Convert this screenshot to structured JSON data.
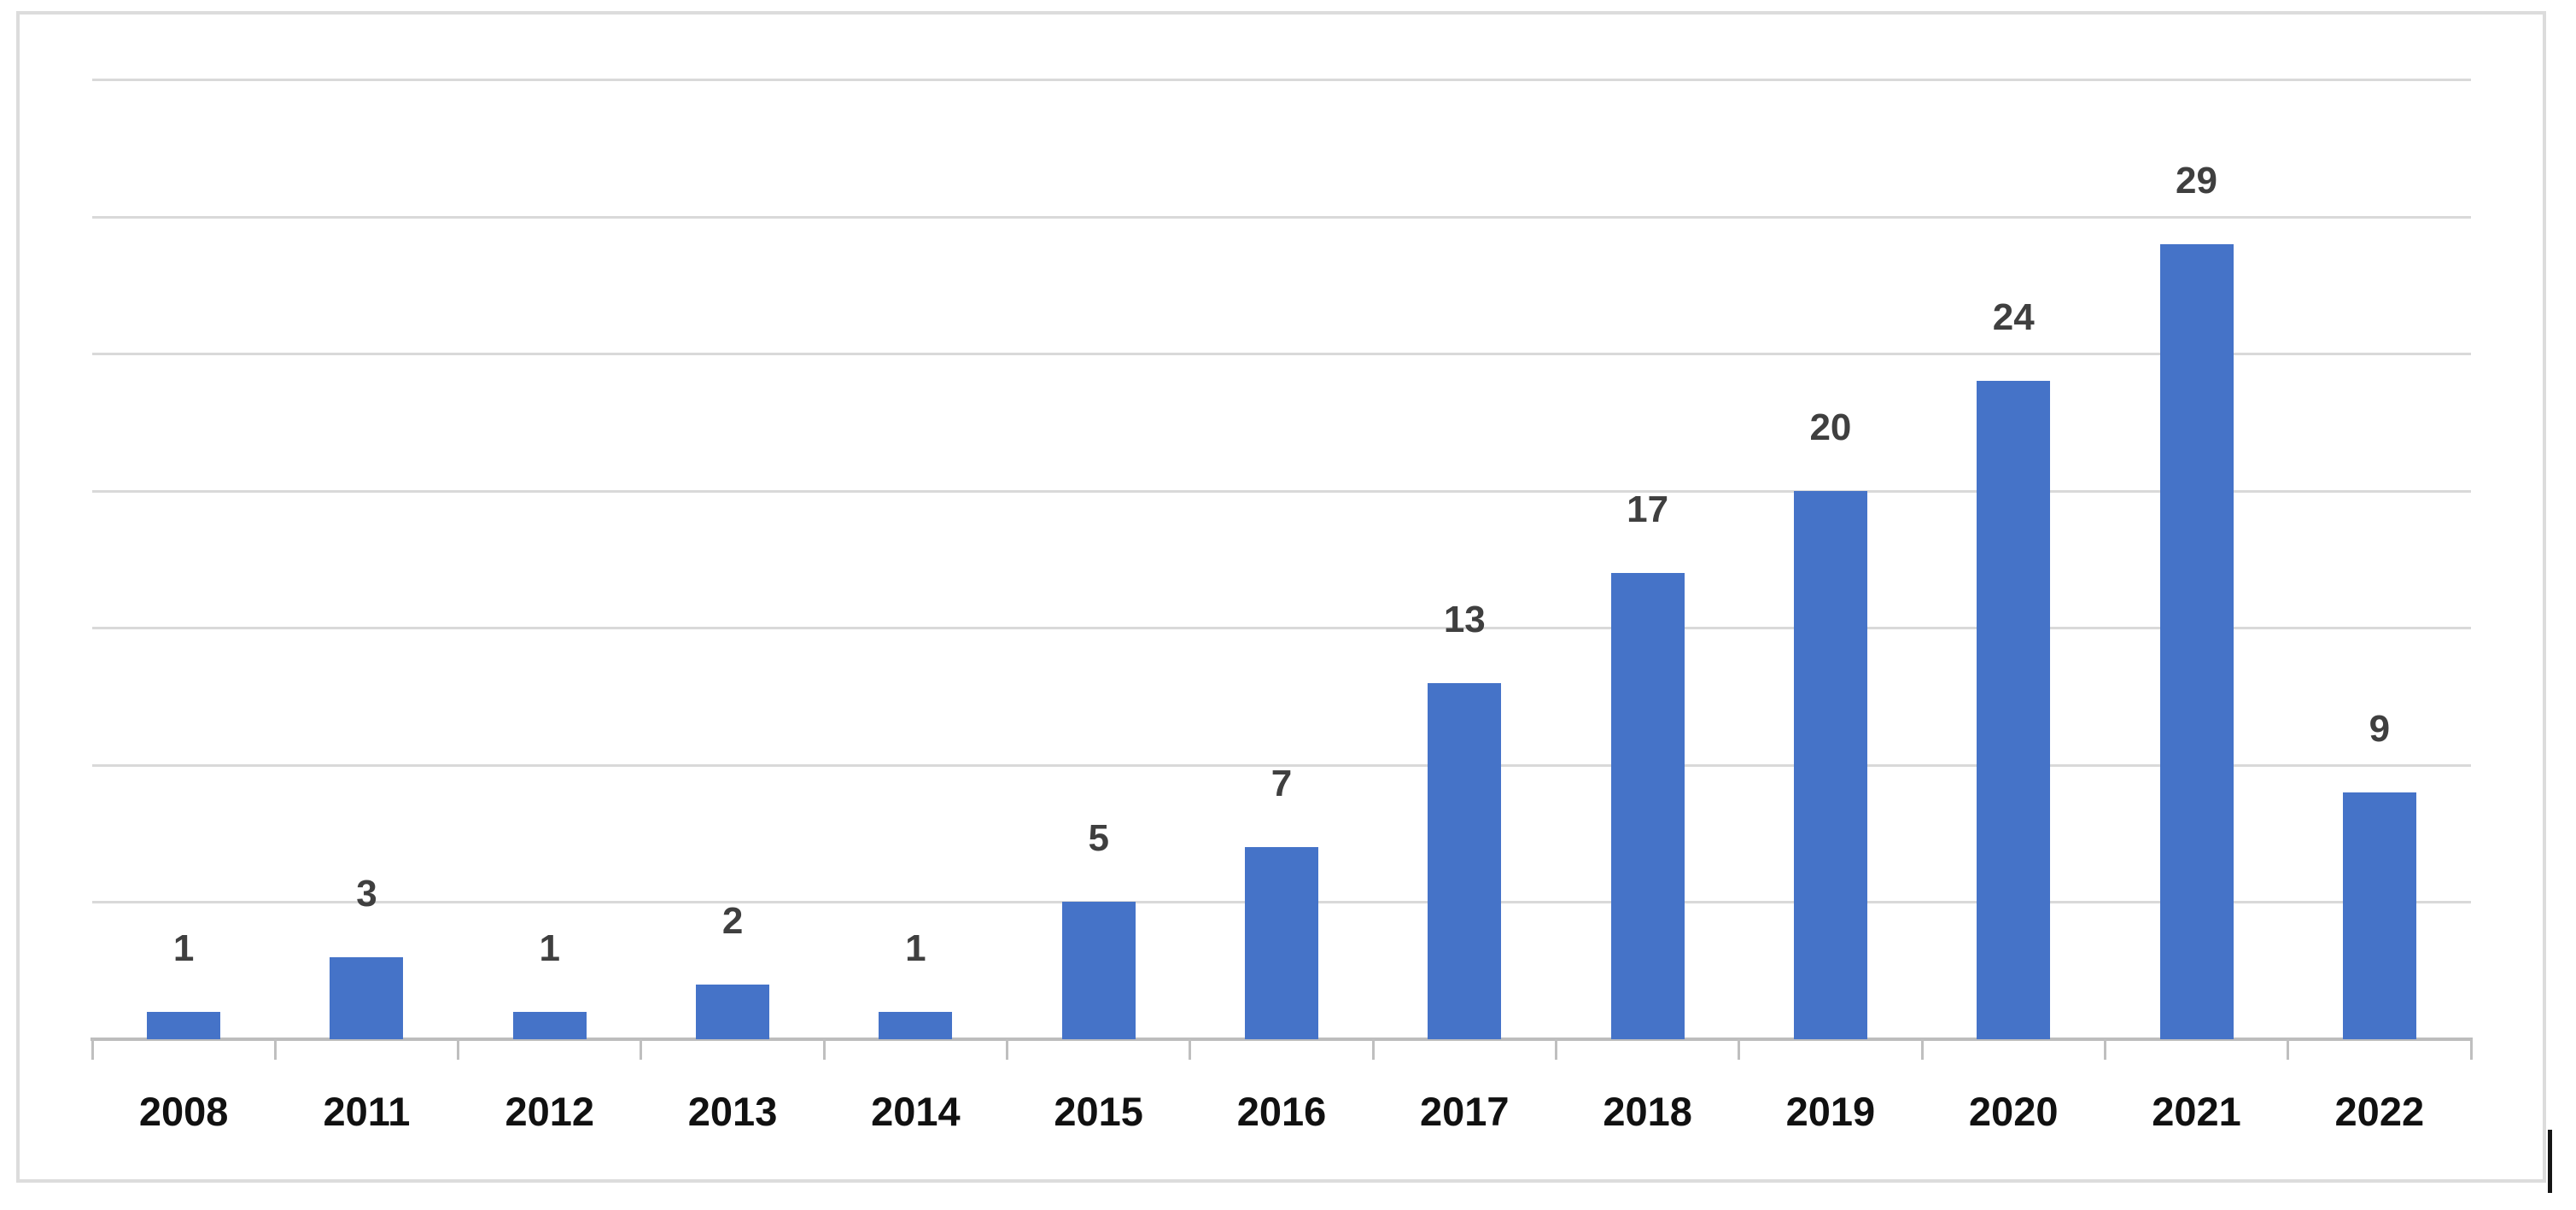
{
  "chart_data": {
    "type": "bar",
    "title": "",
    "xlabel": "",
    "ylabel": "",
    "categories": [
      "2008",
      "2011",
      "2012",
      "2013",
      "2014",
      "2015",
      "2016",
      "2017",
      "2018",
      "2019",
      "2020",
      "2021",
      "2022"
    ],
    "values": [
      1,
      3,
      1,
      2,
      1,
      5,
      7,
      13,
      17,
      20,
      24,
      29,
      9
    ],
    "data_labels_shown": true,
    "ylim": [
      0,
      35
    ],
    "gridline_step": 5,
    "grid": true,
    "y_axis_tick_labels": "none",
    "legend": false
  },
  "colors": {
    "background": "#ffffff",
    "frame_border": "#dcdcdc",
    "bar": "#4573c8",
    "gridline": "#d9d9d9",
    "axis_line": "#bdbdbd",
    "tick": "#bfbfbf",
    "value_label": "#3f3f3f",
    "category_label": "#111111",
    "text_cursor": "#151515"
  },
  "artifacts": {
    "text_cursor_present": true
  }
}
